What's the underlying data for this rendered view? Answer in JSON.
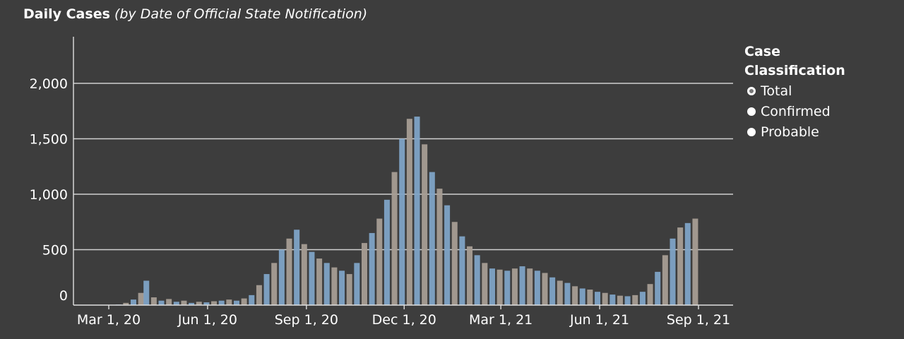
{
  "header": {
    "title": "Daily Cases",
    "subtitle": "(by Date of Official State Notification)"
  },
  "legend": {
    "title_line1": "Case",
    "title_line2": "Classification",
    "items": [
      {
        "label": "Total",
        "selected": true
      },
      {
        "label": "Confirmed",
        "selected": false
      },
      {
        "label": "Probable",
        "selected": false
      }
    ]
  },
  "colors": {
    "background": "#3d3d3d",
    "bar_primary": "#7ea3c6",
    "bar_secondary": "#a69d94",
    "gridline": "#d0d0d0",
    "text": "#ffffff"
  },
  "chart_data": {
    "type": "bar",
    "title": "Daily Cases",
    "subtitle": "(by Date of Official State Notification)",
    "xlabel": "",
    "ylabel": "",
    "ylim": [
      0,
      2400
    ],
    "yticks": [
      0,
      500,
      1000,
      1500,
      2000
    ],
    "ytick_labels": [
      "0",
      "500",
      "1,000",
      "1,500",
      "2,000"
    ],
    "xticks": [
      "2020-03-01",
      "2020-06-01",
      "2020-09-01",
      "2020-12-01",
      "2021-03-01",
      "2021-06-01",
      "2021-09-01"
    ],
    "xtick_labels": [
      "Mar 1, 20",
      "Jun 1, 20",
      "Sep 1, 20",
      "Dec 1, 20",
      "Mar 1, 21",
      "Jun 1, 21",
      "Sep 1, 21"
    ],
    "x_range": [
      "2020-02-01",
      "2021-09-30"
    ],
    "grid": "horizontal",
    "legend_position": "right",
    "series": [
      {
        "name": "Total",
        "points": [
          [
            "2020-03-10",
            5
          ],
          [
            "2020-03-17",
            20
          ],
          [
            "2020-03-24",
            50
          ],
          [
            "2020-03-31",
            110
          ],
          [
            "2020-04-05",
            220
          ],
          [
            "2020-04-12",
            70
          ],
          [
            "2020-04-19",
            40
          ],
          [
            "2020-04-26",
            55
          ],
          [
            "2020-05-03",
            30
          ],
          [
            "2020-05-10",
            40
          ],
          [
            "2020-05-17",
            20
          ],
          [
            "2020-05-24",
            30
          ],
          [
            "2020-05-31",
            25
          ],
          [
            "2020-06-07",
            35
          ],
          [
            "2020-06-14",
            40
          ],
          [
            "2020-06-21",
            50
          ],
          [
            "2020-06-28",
            40
          ],
          [
            "2020-07-05",
            60
          ],
          [
            "2020-07-12",
            90
          ],
          [
            "2020-07-19",
            180
          ],
          [
            "2020-07-26",
            280
          ],
          [
            "2020-08-02",
            380
          ],
          [
            "2020-08-09",
            500
          ],
          [
            "2020-08-16",
            600
          ],
          [
            "2020-08-23",
            680
          ],
          [
            "2020-08-30",
            550
          ],
          [
            "2020-09-06",
            480
          ],
          [
            "2020-09-13",
            420
          ],
          [
            "2020-09-20",
            380
          ],
          [
            "2020-09-27",
            340
          ],
          [
            "2020-10-04",
            310
          ],
          [
            "2020-10-11",
            280
          ],
          [
            "2020-10-18",
            380
          ],
          [
            "2020-10-25",
            560
          ],
          [
            "2020-11-01",
            650
          ],
          [
            "2020-11-08",
            780
          ],
          [
            "2020-11-15",
            950
          ],
          [
            "2020-11-22",
            1200
          ],
          [
            "2020-11-29",
            1500
          ],
          [
            "2020-12-06",
            1680
          ],
          [
            "2020-12-13",
            1700
          ],
          [
            "2020-12-20",
            1450
          ],
          [
            "2020-12-27",
            1200
          ],
          [
            "2021-01-03",
            1050
          ],
          [
            "2021-01-10",
            900
          ],
          [
            "2021-01-17",
            750
          ],
          [
            "2021-01-24",
            620
          ],
          [
            "2021-01-31",
            530
          ],
          [
            "2021-02-07",
            450
          ],
          [
            "2021-02-14",
            380
          ],
          [
            "2021-02-21",
            330
          ],
          [
            "2021-02-28",
            320
          ],
          [
            "2021-03-07",
            310
          ],
          [
            "2021-03-14",
            330
          ],
          [
            "2021-03-21",
            350
          ],
          [
            "2021-03-28",
            330
          ],
          [
            "2021-04-04",
            310
          ],
          [
            "2021-04-11",
            290
          ],
          [
            "2021-04-18",
            250
          ],
          [
            "2021-04-25",
            220
          ],
          [
            "2021-05-02",
            200
          ],
          [
            "2021-05-09",
            170
          ],
          [
            "2021-05-16",
            150
          ],
          [
            "2021-05-23",
            140
          ],
          [
            "2021-05-30",
            120
          ],
          [
            "2021-06-06",
            110
          ],
          [
            "2021-06-13",
            95
          ],
          [
            "2021-06-20",
            85
          ],
          [
            "2021-06-27",
            80
          ],
          [
            "2021-07-04",
            90
          ],
          [
            "2021-07-11",
            120
          ],
          [
            "2021-07-18",
            190
          ],
          [
            "2021-07-25",
            300
          ],
          [
            "2021-08-01",
            450
          ],
          [
            "2021-08-08",
            600
          ],
          [
            "2021-08-15",
            700
          ],
          [
            "2021-08-22",
            740
          ],
          [
            "2021-08-29",
            780
          ]
        ]
      }
    ]
  }
}
